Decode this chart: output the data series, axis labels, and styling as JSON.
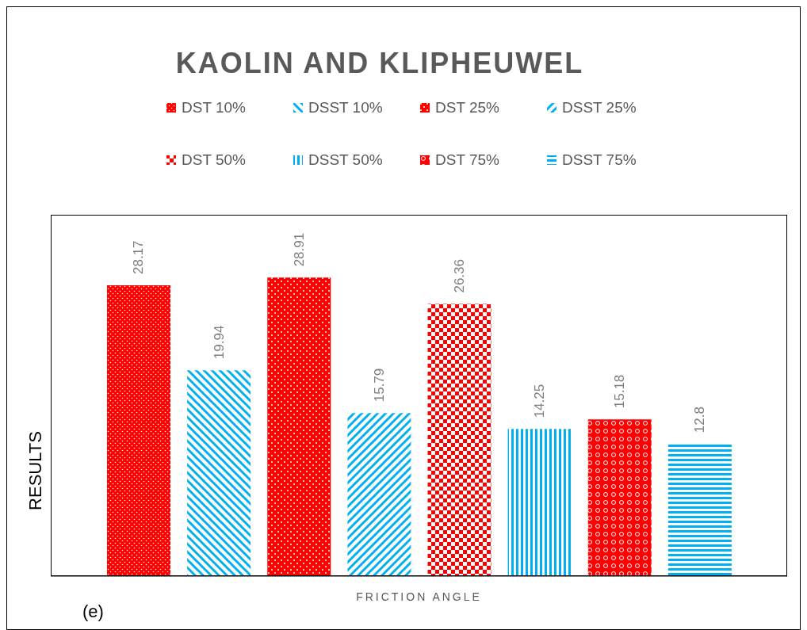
{
  "chart_data": {
    "type": "bar",
    "title": "KAOLIN AND KLIPHEUWEL",
    "xlabel": "FRICTION ANGLE",
    "ylabel": "RESULTS",
    "annotations": [
      "(e)"
    ],
    "categories": [
      null,
      null,
      null,
      null,
      null,
      null,
      null,
      null
    ],
    "stacked": true,
    "series": [
      {
        "name": "DST 10%",
        "color": "#ff0000",
        "values": [
          28.17,
          null,
          null,
          null,
          null,
          null,
          null,
          null
        ]
      },
      {
        "name": "DSST 10%",
        "color": "#00b0f0",
        "values": [
          null,
          19.94,
          null,
          null,
          null,
          null,
          null,
          null
        ]
      },
      {
        "name": "DST 25%",
        "color": "#ff0000",
        "values": [
          null,
          null,
          28.91,
          null,
          null,
          null,
          null,
          null
        ]
      },
      {
        "name": "DSST 25%",
        "color": "#00b0f0",
        "values": [
          null,
          null,
          null,
          15.79,
          null,
          null,
          null,
          null
        ]
      },
      {
        "name": "DST 50%",
        "color": "#ff0000",
        "values": [
          null,
          null,
          null,
          null,
          26.36,
          null,
          null,
          null
        ]
      },
      {
        "name": "DSST 50%",
        "color": "#00b0f0",
        "values": [
          null,
          null,
          null,
          null,
          null,
          14.25,
          null,
          null
        ]
      },
      {
        "name": "DST 75%",
        "color": "#ff0000",
        "values": [
          null,
          null,
          null,
          null,
          null,
          null,
          15.18,
          null
        ]
      },
      {
        "name": "DSST 75%",
        "color": "#00b0f0",
        "values": [
          null,
          null,
          null,
          null,
          null,
          null,
          null,
          12.8
        ]
      }
    ],
    "ylim": [
      0,
      35
    ],
    "data_labels": true,
    "legend": "top"
  }
}
